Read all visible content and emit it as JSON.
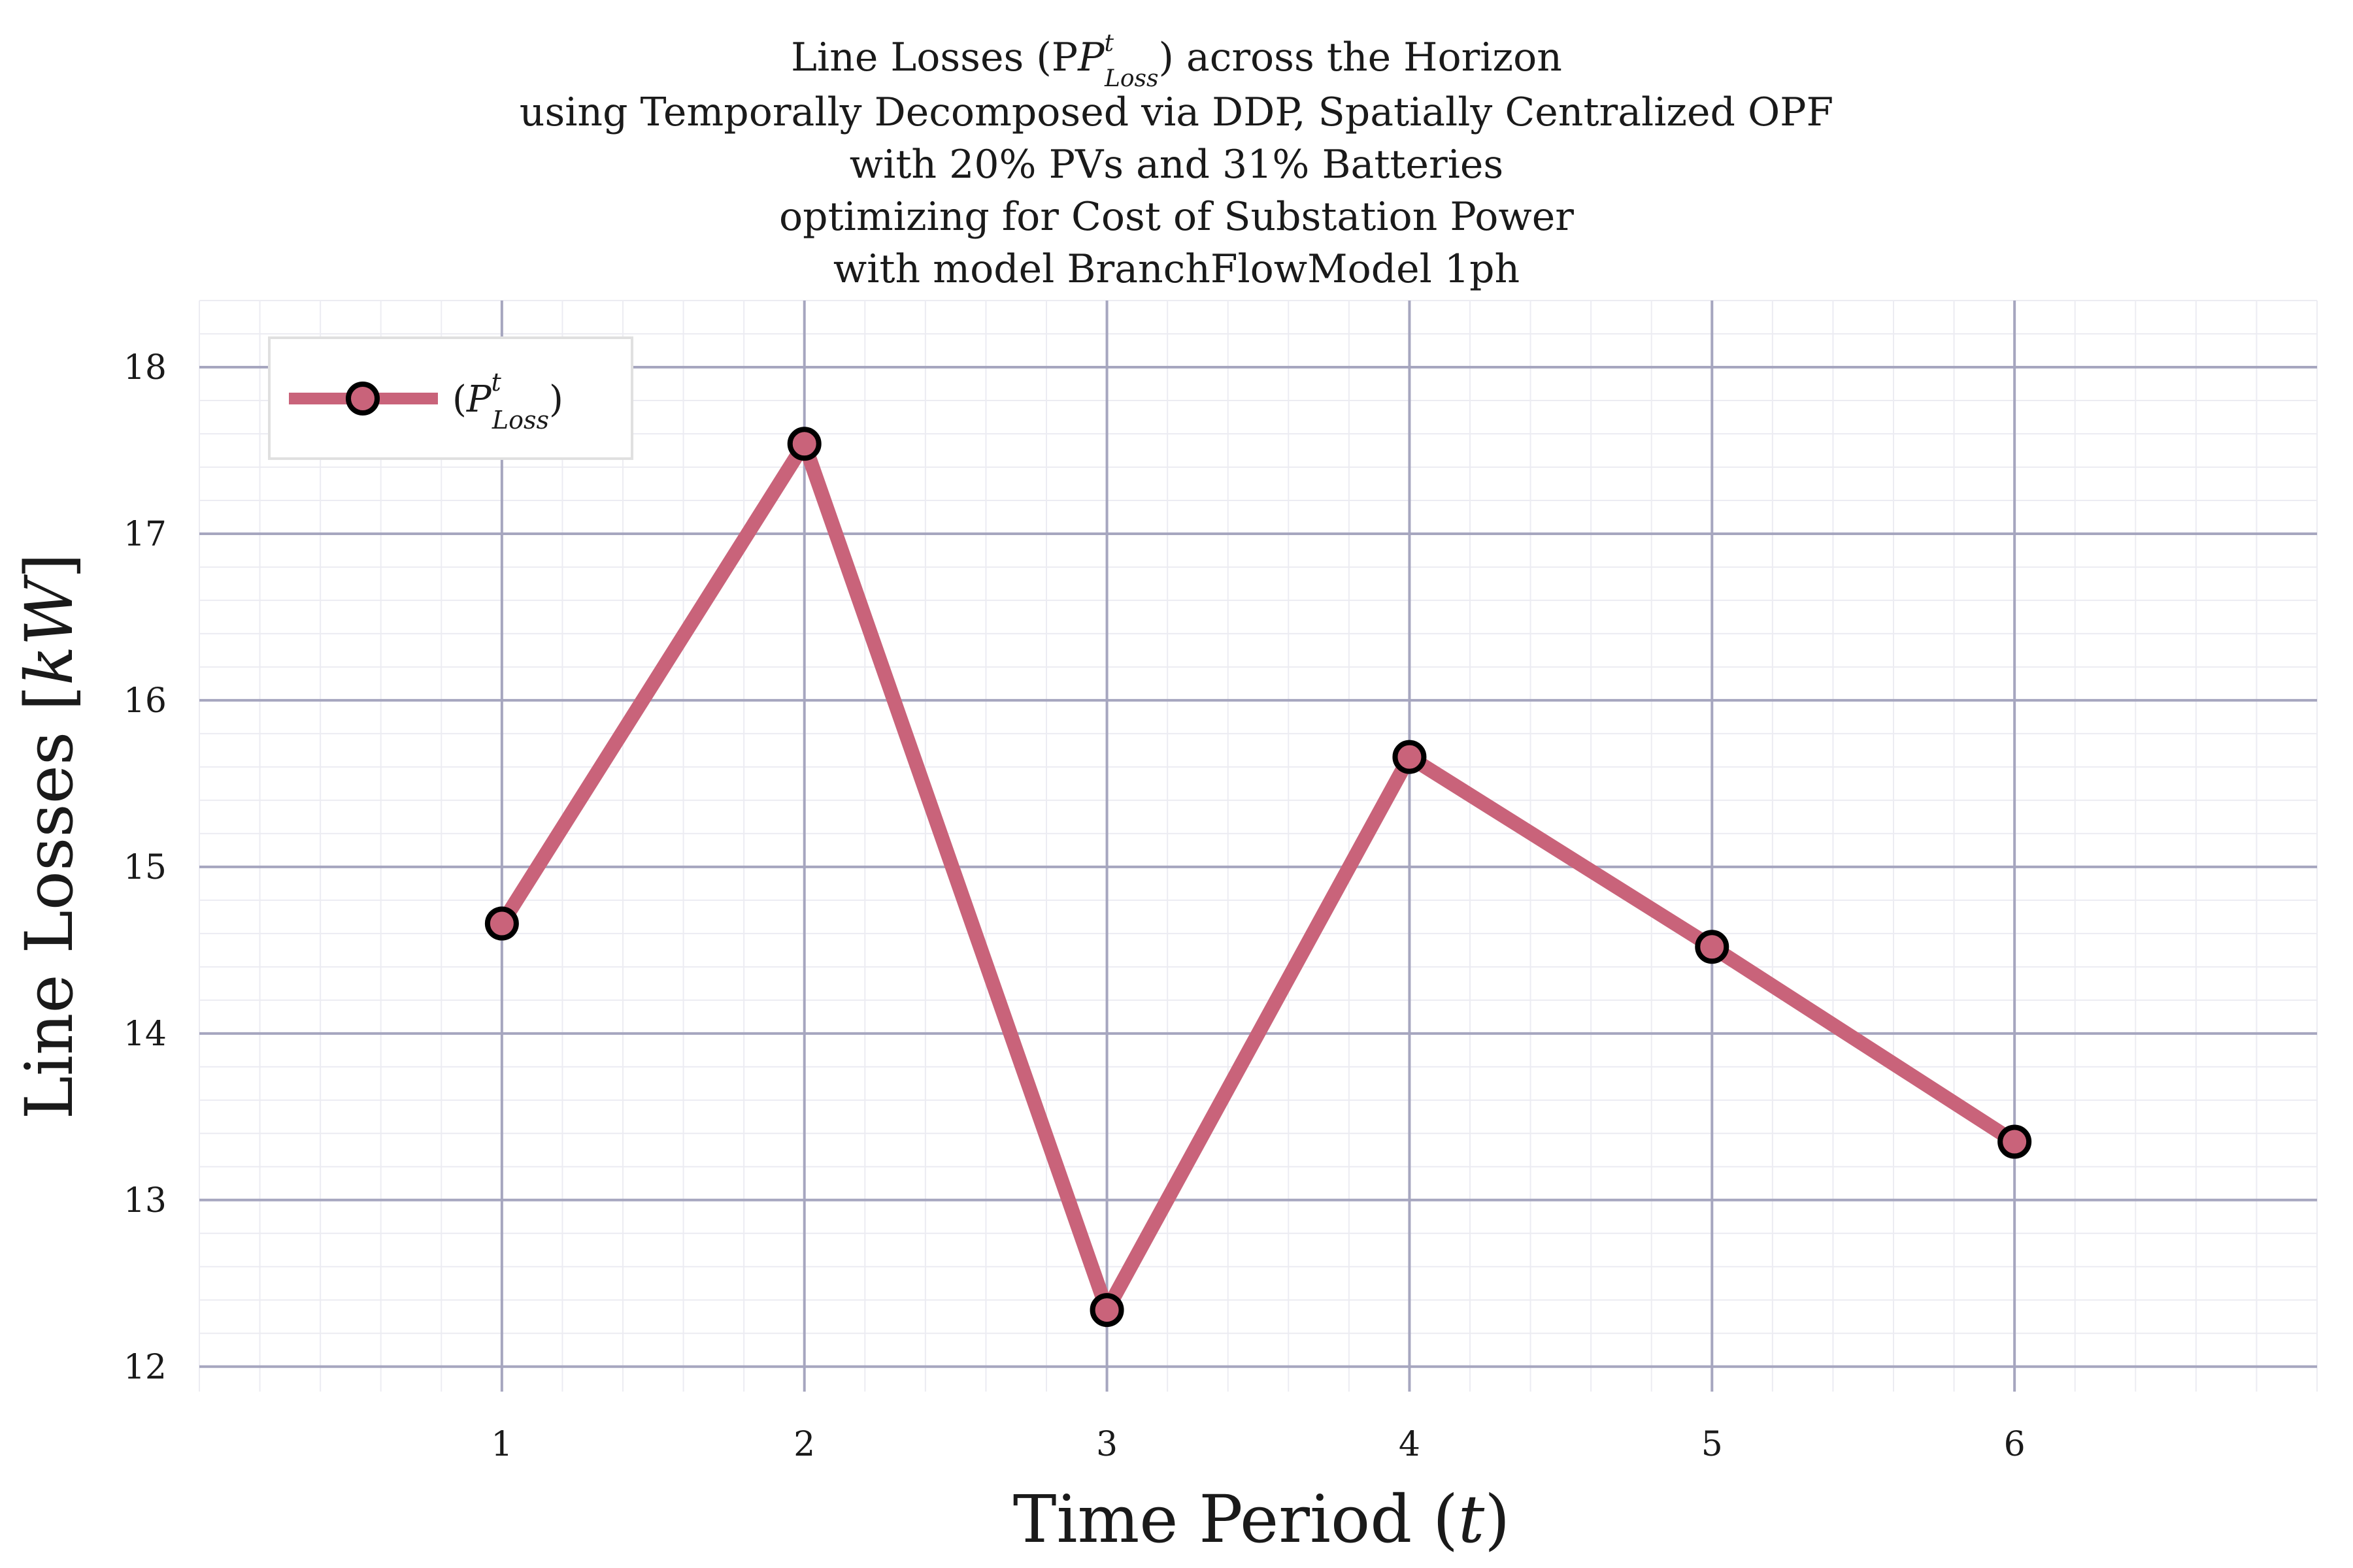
{
  "chart_data": {
    "type": "line",
    "title_lines": [
      "Line Losses (P",
      "using Temporally Decomposed via DDP, Spatially Centralized OPF",
      "with 20% PVs and 31% Batteries",
      "optimizing for Cost of Substation Power",
      "with model BranchFlowModel 1ph"
    ],
    "title_first_line_tail": ") across the Horizon",
    "math_P": "P",
    "math_sup": "t",
    "math_sub": "Loss",
    "xlabel_prefix": "Time Period (",
    "xlabel_var": "t",
    "xlabel_suffix": ")",
    "ylabel_prefix": "Line Losses [",
    "ylabel_unit": "kW",
    "ylabel_suffix": "]",
    "x": [
      1,
      2,
      3,
      4,
      5,
      6
    ],
    "xlim": [
      0,
      7
    ],
    "ylim": [
      11.85,
      18.4
    ],
    "xticks": [
      1,
      2,
      3,
      4,
      5,
      6
    ],
    "yticks": [
      12,
      13,
      14,
      15,
      16,
      17,
      18
    ],
    "series": [
      {
        "name_prefix": "(",
        "name_suffix": ")",
        "values": [
          14.66,
          17.54,
          12.34,
          15.66,
          14.52,
          13.35
        ],
        "color": "#c9637a",
        "marker_edge": "#000000"
      }
    ],
    "grid": true,
    "legend_position": "top-left"
  }
}
